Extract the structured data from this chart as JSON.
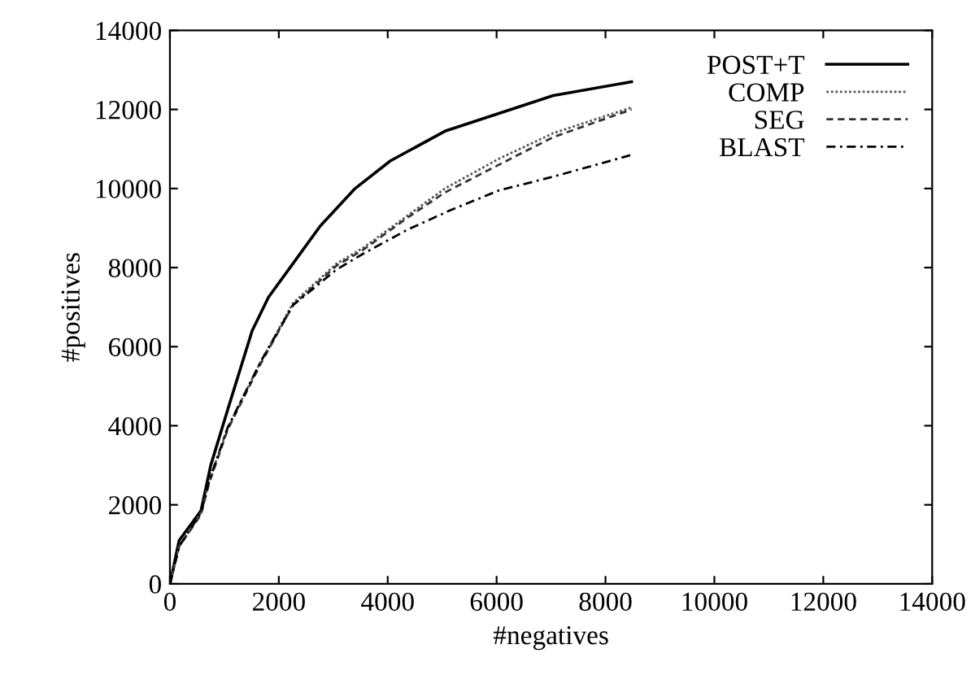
{
  "chart_data": {
    "type": "line",
    "xlabel": "#negatives",
    "ylabel": "#positives",
    "xlim": [
      0,
      14000
    ],
    "ylim": [
      0,
      14000
    ],
    "xticks": [
      0,
      2000,
      4000,
      6000,
      8000,
      10000,
      12000,
      14000
    ],
    "yticks": [
      0,
      2000,
      4000,
      6000,
      8000,
      10000,
      12000,
      14000
    ],
    "grid": false,
    "legend": "top right",
    "series": [
      {
        "name": "POST+T",
        "color": "#000000",
        "line_style": "solid",
        "x": [
          0,
          170,
          570,
          750,
          1060,
          1510,
          1810,
          2260,
          2760,
          3400,
          4050,
          5050,
          6040,
          7040,
          8480
        ],
        "values": [
          0,
          1100,
          1850,
          3000,
          4400,
          6400,
          7250,
          8100,
          9050,
          10000,
          10700,
          11450,
          11900,
          12350,
          12700
        ]
      },
      {
        "name": "COMP",
        "color": "#555555",
        "line_style": "dotted",
        "x": [
          0,
          170,
          570,
          720,
          1060,
          1660,
          2260,
          3060,
          3550,
          4350,
          5050,
          6040,
          7040,
          8480
        ],
        "values": [
          0,
          950,
          1800,
          2600,
          3950,
          5600,
          7100,
          8100,
          8500,
          9300,
          10000,
          10750,
          11400,
          12050
        ]
      },
      {
        "name": "SEG",
        "color": "#333333",
        "line_style": "dashed",
        "x": [
          0,
          170,
          570,
          720,
          1060,
          1660,
          2260,
          3060,
          3550,
          4350,
          5050,
          6040,
          7040,
          8480
        ],
        "values": [
          0,
          950,
          1750,
          2550,
          3900,
          5550,
          7050,
          8050,
          8450,
          9250,
          9900,
          10600,
          11300,
          12000
        ]
      },
      {
        "name": "BLAST",
        "color": "#000000",
        "line_style": "dashdot",
        "x": [
          0,
          170,
          570,
          720,
          1060,
          1660,
          2260,
          3060,
          3550,
          4350,
          5150,
          6040,
          7040,
          8480
        ],
        "values": [
          0,
          950,
          1800,
          2600,
          3950,
          5600,
          7050,
          7950,
          8350,
          8950,
          9450,
          9950,
          10300,
          10850
        ]
      }
    ]
  }
}
